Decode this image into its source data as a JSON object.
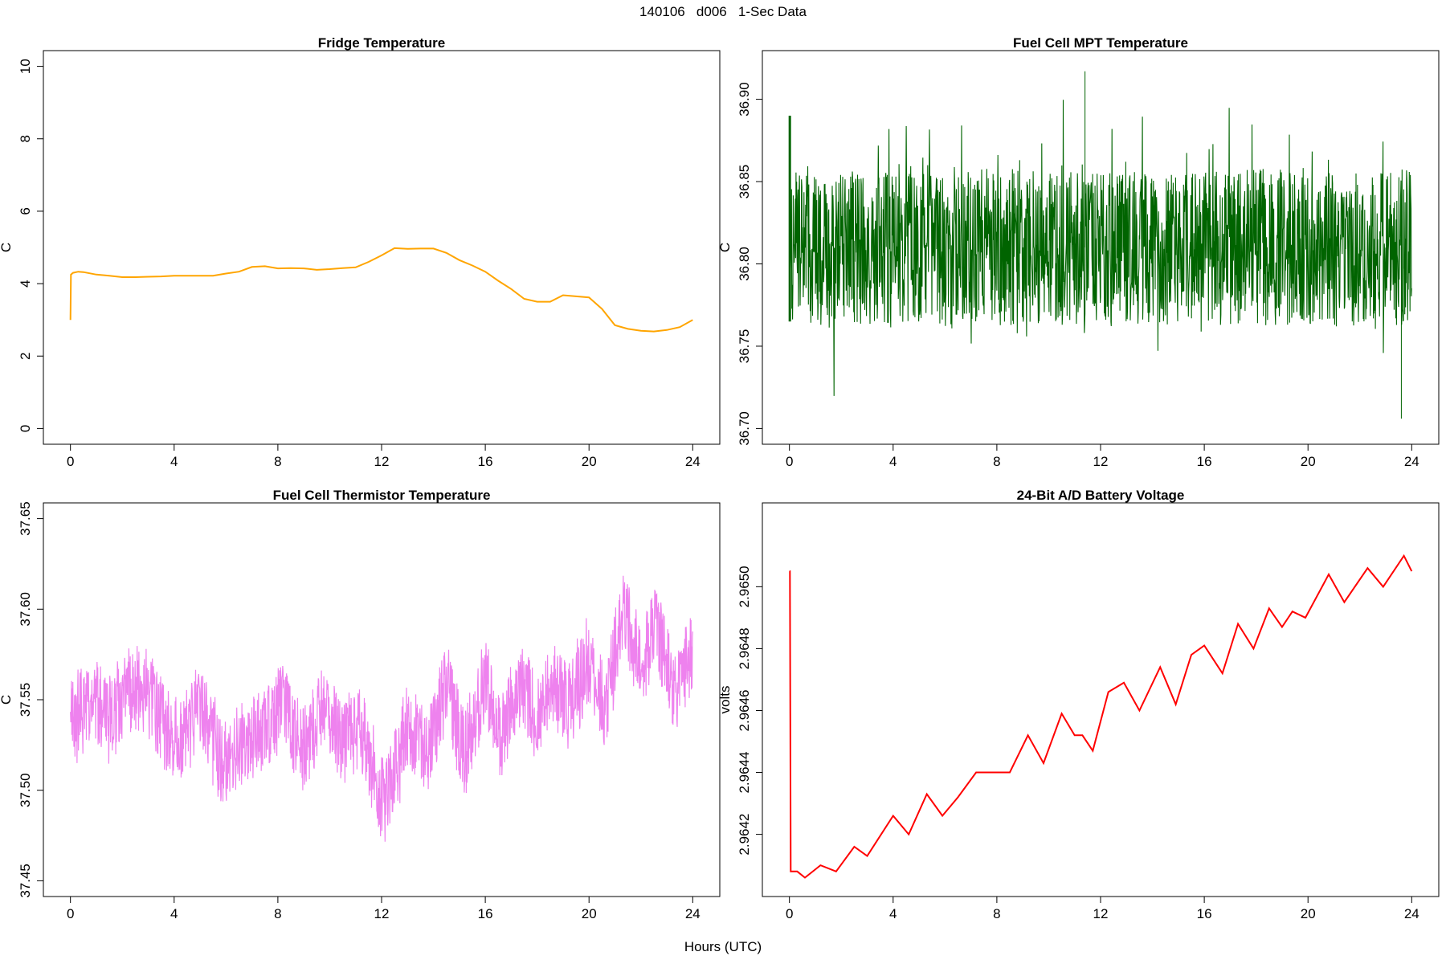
{
  "figure": {
    "main_title": "140106   d006   1-Sec Data",
    "xlabel": "Hours (UTC)"
  },
  "chart_data": [
    {
      "type": "line",
      "title": "Fridge Temperature",
      "ylabel": "C",
      "xlim": [
        0,
        24
      ],
      "ylim": [
        0,
        10
      ],
      "xticks": [
        0,
        4,
        8,
        12,
        16,
        20,
        24
      ],
      "yticks": [
        0,
        2,
        4,
        6,
        8,
        10
      ],
      "color": "#FFA500",
      "series": [
        {
          "x": [
            0,
            0.02,
            0.1,
            0.3,
            0.5,
            1,
            1.5,
            2,
            2.5,
            3,
            3.5,
            4,
            4.5,
            5,
            5.5,
            6,
            6.5,
            7,
            7.5,
            8,
            8.5,
            9,
            9.5,
            10,
            10.5,
            11,
            11.5,
            12,
            12.5,
            13,
            13.5,
            14,
            14.5,
            15,
            15.5,
            16,
            16.5,
            17,
            17.5,
            18,
            18.5,
            19,
            19.5,
            20,
            20.5,
            21,
            21.5,
            22,
            22.5,
            23,
            23.5,
            24
          ],
          "y": [
            3.0,
            4.25,
            4.3,
            4.33,
            4.32,
            4.25,
            4.22,
            4.18,
            4.18,
            4.19,
            4.2,
            4.22,
            4.22,
            4.22,
            4.22,
            4.28,
            4.33,
            4.46,
            4.48,
            4.42,
            4.43,
            4.42,
            4.38,
            4.4,
            4.43,
            4.45,
            4.6,
            4.78,
            4.98,
            4.96,
            4.97,
            4.97,
            4.85,
            4.65,
            4.5,
            4.33,
            4.08,
            3.85,
            3.58,
            3.5,
            3.5,
            3.68,
            3.65,
            3.62,
            3.3,
            2.85,
            2.75,
            2.7,
            2.68,
            2.72,
            2.8,
            3.0
          ]
        }
      ]
    },
    {
      "type": "line",
      "title": "Fuel Cell MPT Temperature",
      "ylabel": "C",
      "xlim": [
        0,
        24
      ],
      "ylim": [
        36.7,
        36.92
      ],
      "xticks": [
        0,
        4,
        8,
        12,
        16,
        20,
        24
      ],
      "yticks": [
        "36.70",
        "36.75",
        "36.80",
        "36.85",
        "36.90"
      ],
      "color": "#006400",
      "series": [
        {
          "x": [
            0,
            2,
            4,
            6,
            8,
            10,
            12,
            14,
            16,
            18,
            20,
            22,
            24
          ],
          "center": [
            36.81,
            36.81,
            36.81,
            36.81,
            36.81,
            36.81,
            36.81,
            36.81,
            36.81,
            36.81,
            36.81,
            36.81,
            36.81
          ],
          "band_low": [
            36.765,
            36.765,
            36.765,
            36.765,
            36.765,
            36.765,
            36.765,
            36.765,
            36.765,
            36.765,
            36.765,
            36.765,
            36.765
          ],
          "band_high": [
            36.855,
            36.855,
            36.855,
            36.855,
            36.855,
            36.855,
            36.855,
            36.855,
            36.855,
            36.855,
            36.855,
            36.855,
            36.855
          ],
          "min_spike": 36.706,
          "max_spike": 36.917
        }
      ]
    },
    {
      "type": "line",
      "title": "Fuel Cell Thermistor Temperature",
      "ylabel": "C",
      "xlim": [
        0,
        24
      ],
      "ylim": [
        37.45,
        37.65
      ],
      "xticks": [
        0,
        4,
        8,
        12,
        16,
        20,
        24
      ],
      "yticks": [
        "37.45",
        "37.50",
        "37.55",
        "37.60",
        "37.65"
      ],
      "color": "#EE82EE",
      "series": [
        {
          "x": [
            0,
            1,
            1.5,
            2.2,
            3,
            3.6,
            4.3,
            5,
            5.8,
            6.6,
            7.5,
            8.3,
            9,
            9.8,
            10.5,
            11.2,
            12.1,
            13,
            13.8,
            14.5,
            15.2,
            16,
            16.6,
            17.4,
            18,
            18.6,
            19.2,
            20,
            20.6,
            21.3,
            22,
            22.6,
            23.3,
            24
          ],
          "center": [
            37.54,
            37.55,
            37.54,
            37.555,
            37.555,
            37.535,
            37.525,
            37.55,
            37.515,
            37.525,
            37.535,
            37.545,
            37.52,
            37.55,
            37.525,
            37.535,
            37.49,
            37.535,
            37.52,
            37.56,
            37.52,
            37.56,
            37.53,
            37.56,
            37.54,
            37.56,
            37.545,
            37.57,
            37.545,
            37.6,
            37.57,
            37.59,
            37.555,
            37.58
          ]
        }
      ]
    },
    {
      "type": "line",
      "title": "24-Bit A/D Battery Voltage",
      "ylabel": "volts",
      "xlim": [
        0,
        24
      ],
      "ylim": [
        2.96405,
        2.96522
      ],
      "xticks": [
        0,
        4,
        8,
        12,
        16,
        20,
        24
      ],
      "yticks": [
        "2.9642",
        "2.9644",
        "2.9646",
        "2.9648",
        "2.9650"
      ],
      "color": "#FF0000",
      "series": [
        {
          "x": [
            0,
            0.02,
            0.05,
            0.3,
            0.6,
            1.2,
            1.8,
            2.5,
            3.0,
            4.0,
            4.6,
            5.3,
            5.9,
            6.5,
            7.2,
            8.0,
            8.5,
            9.2,
            9.8,
            10.5,
            11.0,
            11.3,
            11.7,
            12.3,
            12.9,
            13.5,
            14.3,
            14.9,
            15.5,
            16.0,
            16.7,
            17.3,
            17.9,
            18.5,
            19.0,
            19.4,
            19.9,
            20.8,
            21.4,
            22.3,
            22.9,
            23.7,
            24.0
          ],
          "y": [
            2.96505,
            2.96505,
            2.96408,
            2.96408,
            2.96406,
            2.9641,
            2.96408,
            2.96416,
            2.96413,
            2.96426,
            2.9642,
            2.96433,
            2.96426,
            2.96432,
            2.9644,
            2.9644,
            2.9644,
            2.96452,
            2.96443,
            2.96459,
            2.96452,
            2.96452,
            2.96447,
            2.96466,
            2.96469,
            2.9646,
            2.96474,
            2.96462,
            2.96478,
            2.96481,
            2.96472,
            2.96488,
            2.9648,
            2.96493,
            2.96487,
            2.96492,
            2.9649,
            2.96504,
            2.96495,
            2.96506,
            2.965,
            2.9651,
            2.96505
          ]
        }
      ]
    }
  ]
}
